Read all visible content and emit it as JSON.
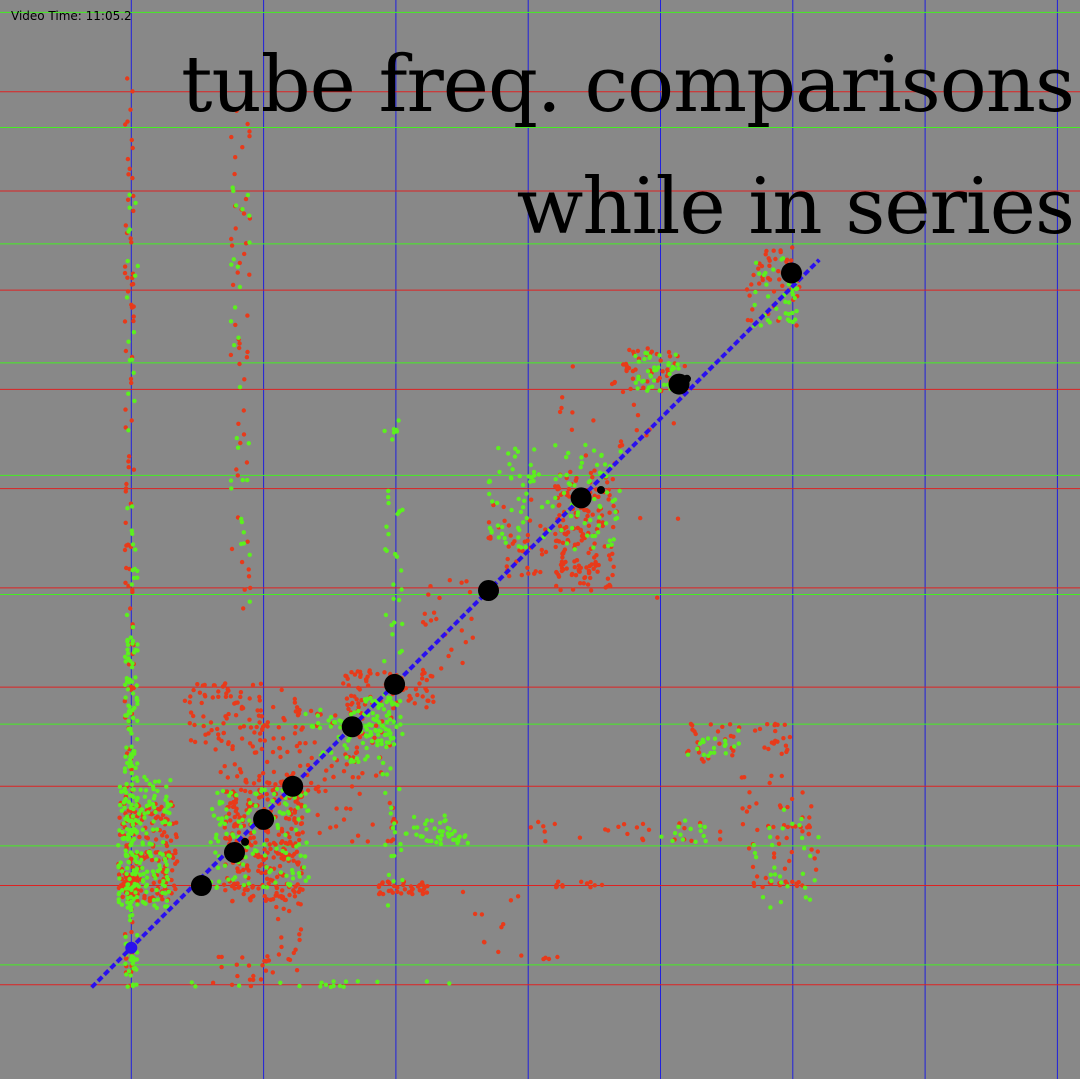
{
  "video_time": "Video Time: 11:05.2",
  "chart_data": {
    "type": "scatter",
    "title_lines": [
      "tube freq. comparisons",
      "while in series"
    ],
    "colors": {
      "background": "#888888",
      "vertical_grid": "#2020dd",
      "red_grid": "#dd2222",
      "green_grid": "#44ee22",
      "red_points": "#e83a1a",
      "green_points": "#5cf01e",
      "diagonal": "#2a10ee",
      "markers": "#000000"
    },
    "grid_x": [
      1,
      2,
      3,
      4,
      5,
      6,
      7,
      8
    ],
    "grid_y_red": [
      7.47,
      6.72,
      5.97,
      5.22,
      4.47,
      3.72,
      2.97,
      2.22,
      1.47,
      0.72
    ],
    "grid_y_green": [
      8.07,
      7.2,
      6.32,
      5.42,
      4.57,
      3.67,
      2.69,
      1.77,
      0.87
    ],
    "diagonal": {
      "from": [
        0.7,
        0.7
      ],
      "to": [
        6.2,
        6.2
      ]
    },
    "markers": [
      [
        1.53,
        1.47
      ],
      [
        1.78,
        1.72
      ],
      [
        2.0,
        1.97
      ],
      [
        2.22,
        2.22
      ],
      [
        2.67,
        2.67
      ],
      [
        2.99,
        2.99
      ],
      [
        3.7,
        3.7
      ],
      [
        4.4,
        4.4
      ],
      [
        5.14,
        5.26
      ],
      [
        5.99,
        6.1
      ]
    ],
    "small_markers": [
      [
        1.86,
        1.8
      ],
      [
        4.55,
        4.46
      ],
      [
        5.2,
        5.3
      ]
    ],
    "clusters": [
      {
        "c": "red",
        "x": [
          0.95,
          1.05
        ],
        "y": [
          1.4,
          1.55
        ],
        "n": 120
      },
      {
        "c": "red",
        "x": [
          0.9,
          1.35
        ],
        "y": [
          1.35,
          2.1
        ],
        "n": 160
      },
      {
        "c": "green",
        "x": [
          0.9,
          1.3
        ],
        "y": [
          1.3,
          2.3
        ],
        "n": 170
      },
      {
        "c": "green",
        "x": [
          0.95,
          1.05
        ],
        "y": [
          0.7,
          3.4
        ],
        "n": 160
      },
      {
        "c": "red",
        "x": [
          0.95,
          1.02
        ],
        "y": [
          0.7,
          7.6
        ],
        "n": 110
      },
      {
        "c": "green",
        "x": [
          0.95,
          1.05
        ],
        "y": [
          2.1,
          7.1
        ],
        "n": 40
      },
      {
        "c": "red",
        "x": [
          1.7,
          2.3
        ],
        "y": [
          1.35,
          2.3
        ],
        "n": 260
      },
      {
        "c": "green",
        "x": [
          1.6,
          2.35
        ],
        "y": [
          1.45,
          2.2
        ],
        "n": 130
      },
      {
        "c": "red",
        "x": [
          1.4,
          2.0
        ],
        "y": [
          2.5,
          3.0
        ],
        "n": 70
      },
      {
        "c": "red",
        "x": [
          2.0,
          2.3
        ],
        "y": [
          0.7,
          3.0
        ],
        "n": 60
      },
      {
        "c": "red",
        "x": [
          1.75,
          1.9
        ],
        "y": [
          3.5,
          7.5
        ],
        "n": 50
      },
      {
        "c": "green",
        "x": [
          1.75,
          1.9
        ],
        "y": [
          3.6,
          7.0
        ],
        "n": 30
      },
      {
        "c": "red",
        "x": [
          2.2,
          3.0
        ],
        "y": [
          1.8,
          2.8
        ],
        "n": 90
      },
      {
        "c": "green",
        "x": [
          2.3,
          3.0
        ],
        "y": [
          2.4,
          2.8
        ],
        "n": 60
      },
      {
        "c": "red",
        "x": [
          2.6,
          3.3
        ],
        "y": [
          2.8,
          3.1
        ],
        "n": 70
      },
      {
        "c": "green",
        "x": [
          2.75,
          3.05
        ],
        "y": [
          2.55,
          2.9
        ],
        "n": 60
      },
      {
        "c": "red",
        "x": [
          1.6,
          2.3
        ],
        "y": [
          2.3,
          2.9
        ],
        "n": 40
      },
      {
        "c": "green",
        "x": [
          2.9,
          3.05
        ],
        "y": [
          1.3,
          5.0
        ],
        "n": 60
      },
      {
        "c": "red",
        "x": [
          2.85,
          3.25
        ],
        "y": [
          1.4,
          1.5
        ],
        "n": 40
      },
      {
        "c": "green",
        "x": [
          3.05,
          3.4
        ],
        "y": [
          1.8,
          2.0
        ],
        "n": 25
      },
      {
        "c": "green",
        "x": [
          3.3,
          3.55
        ],
        "y": [
          1.75,
          1.9
        ],
        "n": 20
      },
      {
        "c": "red",
        "x": [
          3.2,
          3.6
        ],
        "y": [
          3.0,
          3.8
        ],
        "n": 25
      },
      {
        "c": "red",
        "x": [
          4.2,
          4.65
        ],
        "y": [
          3.7,
          4.6
        ],
        "n": 130
      },
      {
        "c": "green",
        "x": [
          3.7,
          4.7
        ],
        "y": [
          4.0,
          4.8
        ],
        "n": 120
      },
      {
        "c": "red",
        "x": [
          3.7,
          4.5
        ],
        "y": [
          3.8,
          4.4
        ],
        "n": 60
      },
      {
        "c": "red",
        "x": [
          4.7,
          5.2
        ],
        "y": [
          5.2,
          5.55
        ],
        "n": 45
      },
      {
        "c": "green",
        "x": [
          4.8,
          5.15
        ],
        "y": [
          5.2,
          5.5
        ],
        "n": 40
      },
      {
        "c": "red",
        "x": [
          5.65,
          6.05
        ],
        "y": [
          5.7,
          6.3
        ],
        "n": 45
      },
      {
        "c": "green",
        "x": [
          5.7,
          6.05
        ],
        "y": [
          5.7,
          6.25
        ],
        "n": 40
      },
      {
        "c": "red",
        "x": [
          4.2,
          5.2
        ],
        "y": [
          3.6,
          5.4
        ],
        "n": 40
      },
      {
        "c": "red",
        "x": [
          5.2,
          5.6
        ],
        "y": [
          2.4,
          2.7
        ],
        "n": 25
      },
      {
        "c": "green",
        "x": [
          5.2,
          5.6
        ],
        "y": [
          2.45,
          2.65
        ],
        "n": 20
      },
      {
        "c": "red",
        "x": [
          5.7,
          6.0
        ],
        "y": [
          2.45,
          2.7
        ],
        "n": 20
      },
      {
        "c": "red",
        "x": [
          4.0,
          6.2
        ],
        "y": [
          1.8,
          1.95
        ],
        "n": 35
      },
      {
        "c": "green",
        "x": [
          5.0,
          5.4
        ],
        "y": [
          1.8,
          1.97
        ],
        "n": 15
      },
      {
        "c": "red",
        "x": [
          5.6,
          6.2
        ],
        "y": [
          1.5,
          2.3
        ],
        "n": 40
      },
      {
        "c": "green",
        "x": [
          5.7,
          6.2
        ],
        "y": [
          1.3,
          2.1
        ],
        "n": 30
      },
      {
        "c": "red",
        "x": [
          4.2,
          4.6
        ],
        "y": [
          1.45,
          1.5
        ],
        "n": 12
      },
      {
        "c": "red",
        "x": [
          5.7,
          6.1
        ],
        "y": [
          1.45,
          1.5
        ],
        "n": 14
      },
      {
        "c": "red",
        "x": [
          3.5,
          4.3
        ],
        "y": [
          0.9,
          1.45
        ],
        "n": 15
      },
      {
        "c": "green",
        "x": [
          1.0,
          3.5
        ],
        "y": [
          0.7,
          0.75
        ],
        "n": 18
      },
      {
        "c": "red",
        "x": [
          1.6,
          2.1
        ],
        "y": [
          0.7,
          0.95
        ],
        "n": 20
      }
    ]
  }
}
